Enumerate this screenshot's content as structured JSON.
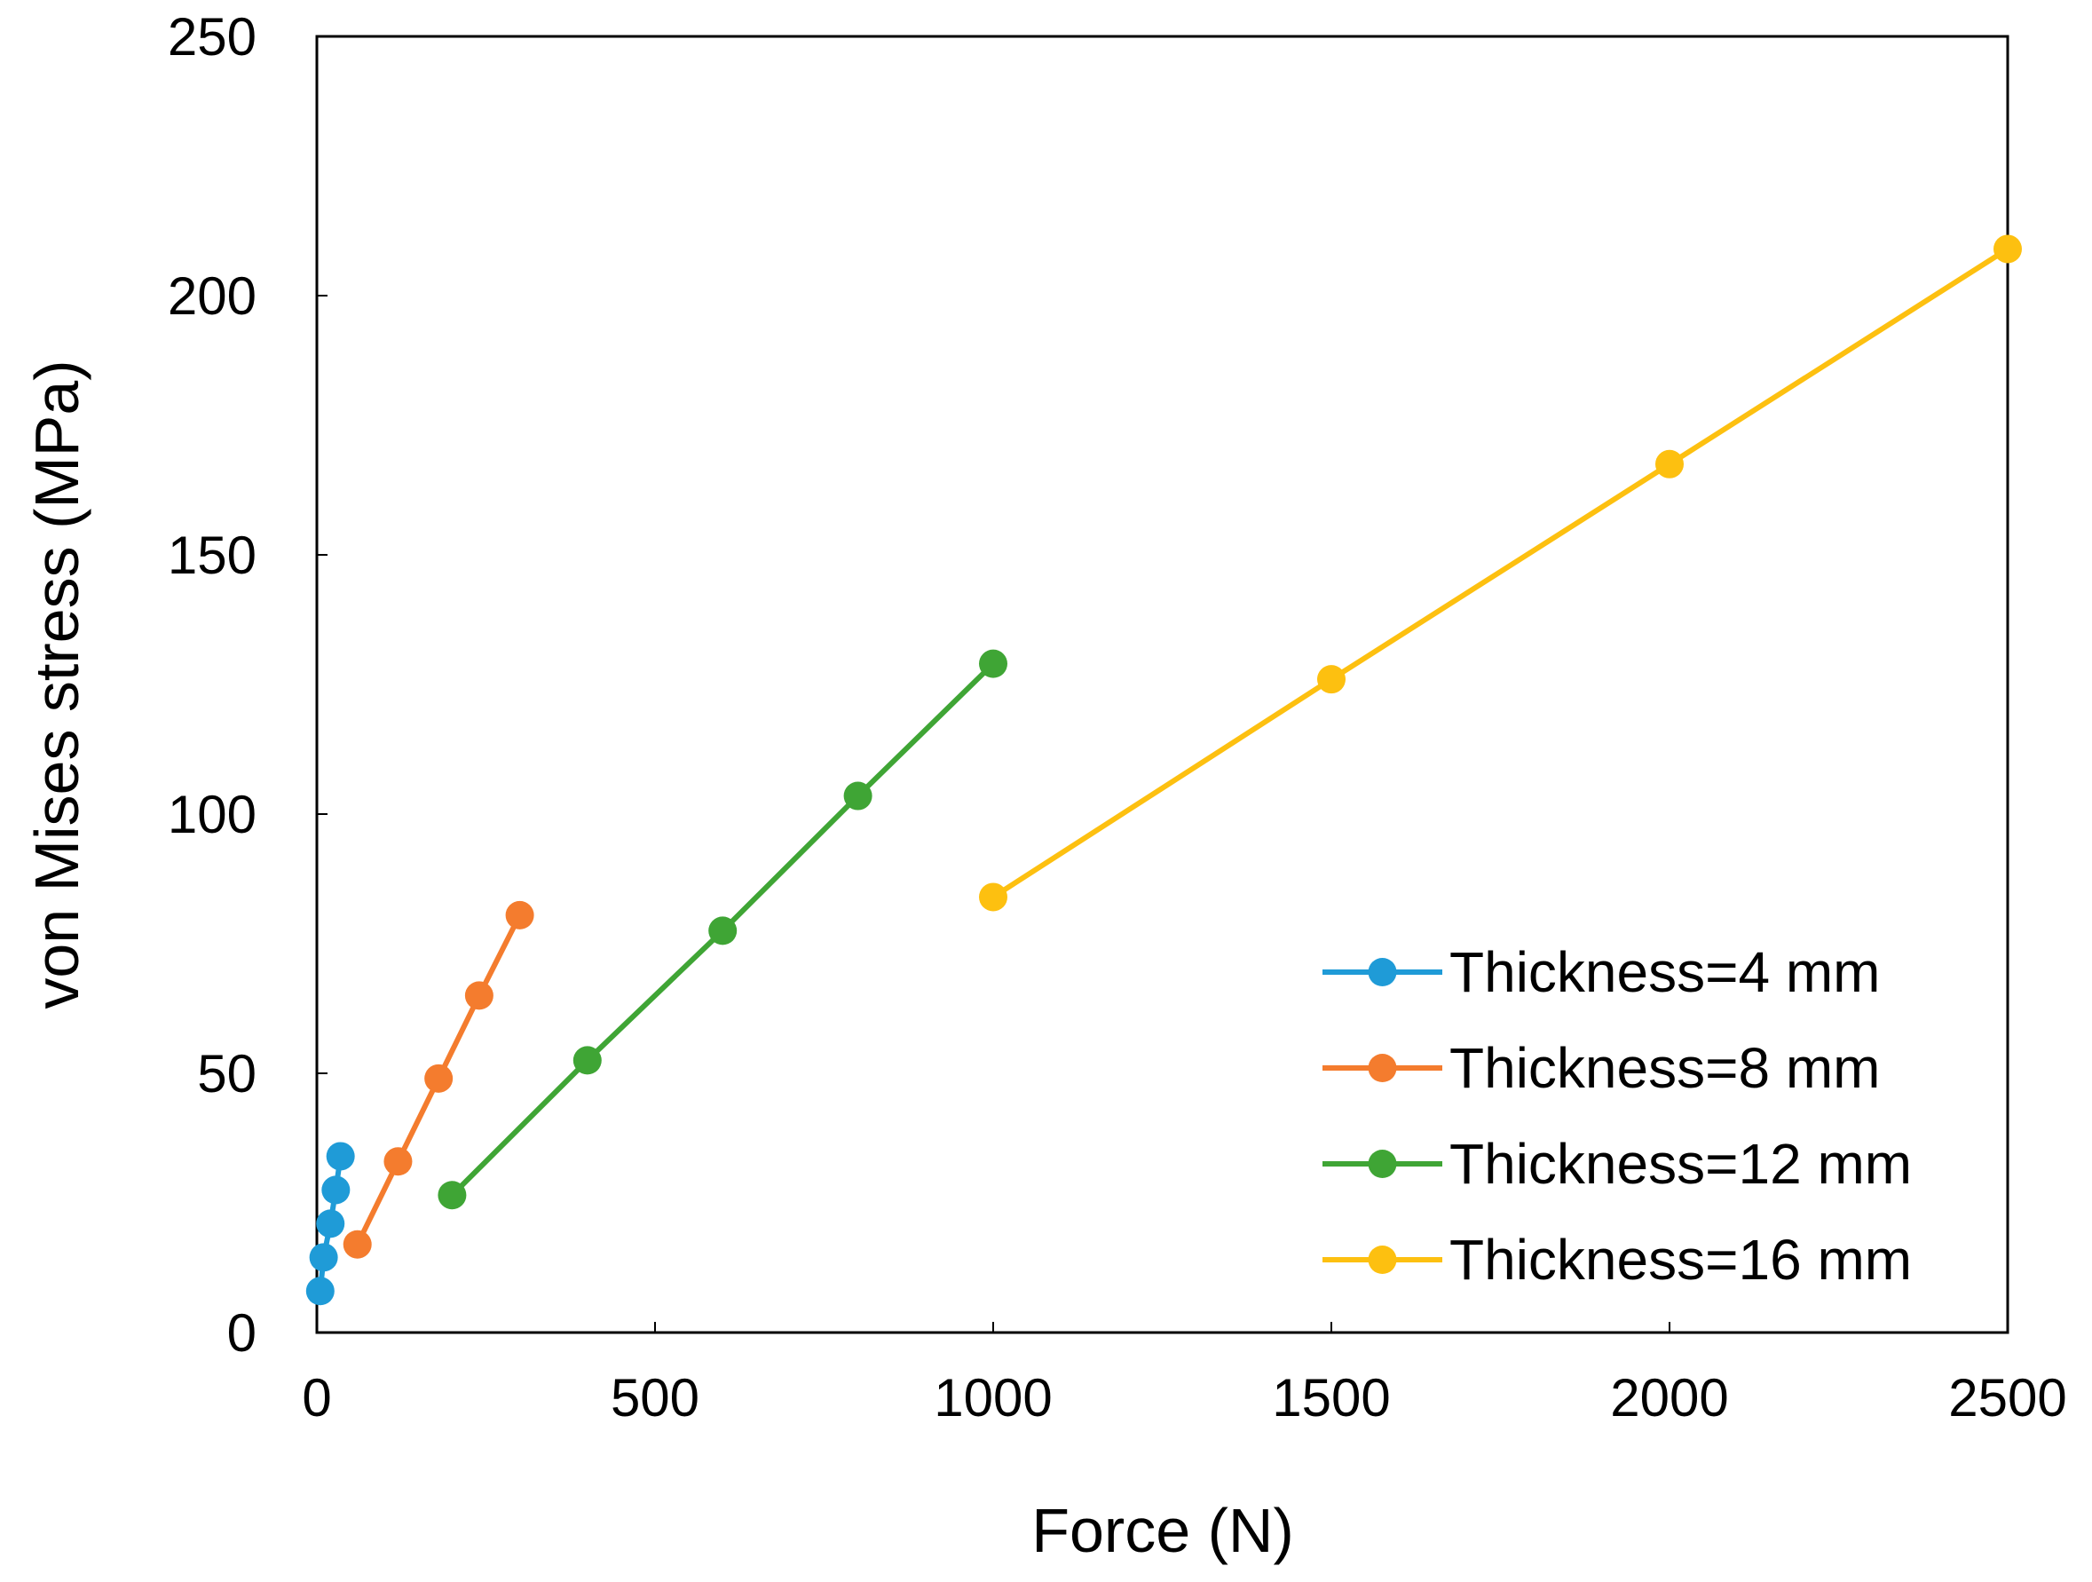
{
  "chart_data": {
    "type": "line",
    "title": "",
    "xlabel": "Force (N)",
    "ylabel": "von Mises stress (MPa)",
    "xlim": [
      0,
      2500
    ],
    "ylim": [
      0,
      250
    ],
    "xticks": [
      0,
      500,
      1000,
      1500,
      2000,
      2500
    ],
    "yticks": [
      0,
      50,
      100,
      150,
      200,
      250
    ],
    "xtick_labels": [
      "0",
      "500",
      "1000",
      "1500",
      "2000",
      "2500"
    ],
    "ytick_labels": [
      "0",
      "50",
      "100",
      "150",
      "200",
      "250"
    ],
    "grid": false,
    "legend_position": "bottom-right",
    "series": [
      {
        "name": "Thickness=4 mm",
        "color": "#1f9bd7",
        "x": [
          5,
          10,
          20,
          28,
          35
        ],
        "y": [
          8,
          14.5,
          21,
          27.5,
          34
        ]
      },
      {
        "name": "Thickness=8 mm",
        "color": "#f47c2e",
        "x": [
          60,
          120,
          180,
          240,
          300
        ],
        "y": [
          17,
          33,
          49,
          65,
          80.5
        ]
      },
      {
        "name": "Thickness=12 mm",
        "color": "#3fa535",
        "x": [
          200,
          400,
          600,
          800,
          1000
        ],
        "y": [
          26.5,
          52.5,
          77.5,
          103.5,
          129
        ]
      },
      {
        "name": "Thickness=16 mm",
        "color": "#fdc010",
        "x": [
          1000,
          1500,
          2000,
          2500
        ],
        "y": [
          84,
          126,
          167.5,
          209
        ]
      }
    ]
  }
}
